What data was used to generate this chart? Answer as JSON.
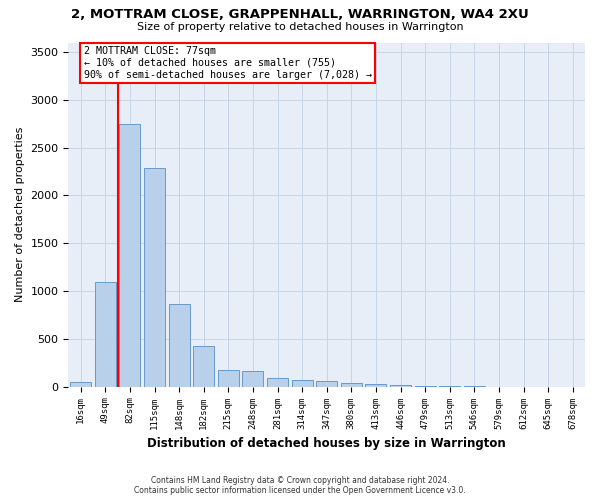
{
  "title": "2, MOTTRAM CLOSE, GRAPPENHALL, WARRINGTON, WA4 2XU",
  "subtitle": "Size of property relative to detached houses in Warrington",
  "xlabel": "Distribution of detached houses by size in Warrington",
  "ylabel": "Number of detached properties",
  "bar_color": "#b8d0ea",
  "bar_edge_color": "#6699cc",
  "categories": [
    "16sqm",
    "49sqm",
    "82sqm",
    "115sqm",
    "148sqm",
    "182sqm",
    "215sqm",
    "248sqm",
    "281sqm",
    "314sqm",
    "347sqm",
    "380sqm",
    "413sqm",
    "446sqm",
    "479sqm",
    "513sqm",
    "546sqm",
    "579sqm",
    "612sqm",
    "645sqm",
    "678sqm"
  ],
  "values": [
    50,
    1100,
    2750,
    2290,
    870,
    430,
    170,
    160,
    90,
    65,
    55,
    40,
    30,
    15,
    8,
    5,
    3,
    2,
    1,
    1,
    1
  ],
  "ylim": [
    0,
    3600
  ],
  "yticks": [
    0,
    500,
    1000,
    1500,
    2000,
    2500,
    3000,
    3500
  ],
  "red_line_x": 1.5,
  "annotation_line1": "2 MOTTRAM CLOSE: 77sqm",
  "annotation_line2": "← 10% of detached houses are smaller (755)",
  "annotation_line3": "90% of semi-detached houses are larger (7,028) →",
  "annotation_box_color": "white",
  "annotation_box_edgecolor": "red",
  "red_line_color": "red",
  "grid_color": "#c8d4e8",
  "bg_color": "#e8eef8",
  "footer_line1": "Contains HM Land Registry data © Crown copyright and database right 2024.",
  "footer_line2": "Contains public sector information licensed under the Open Government Licence v3.0."
}
